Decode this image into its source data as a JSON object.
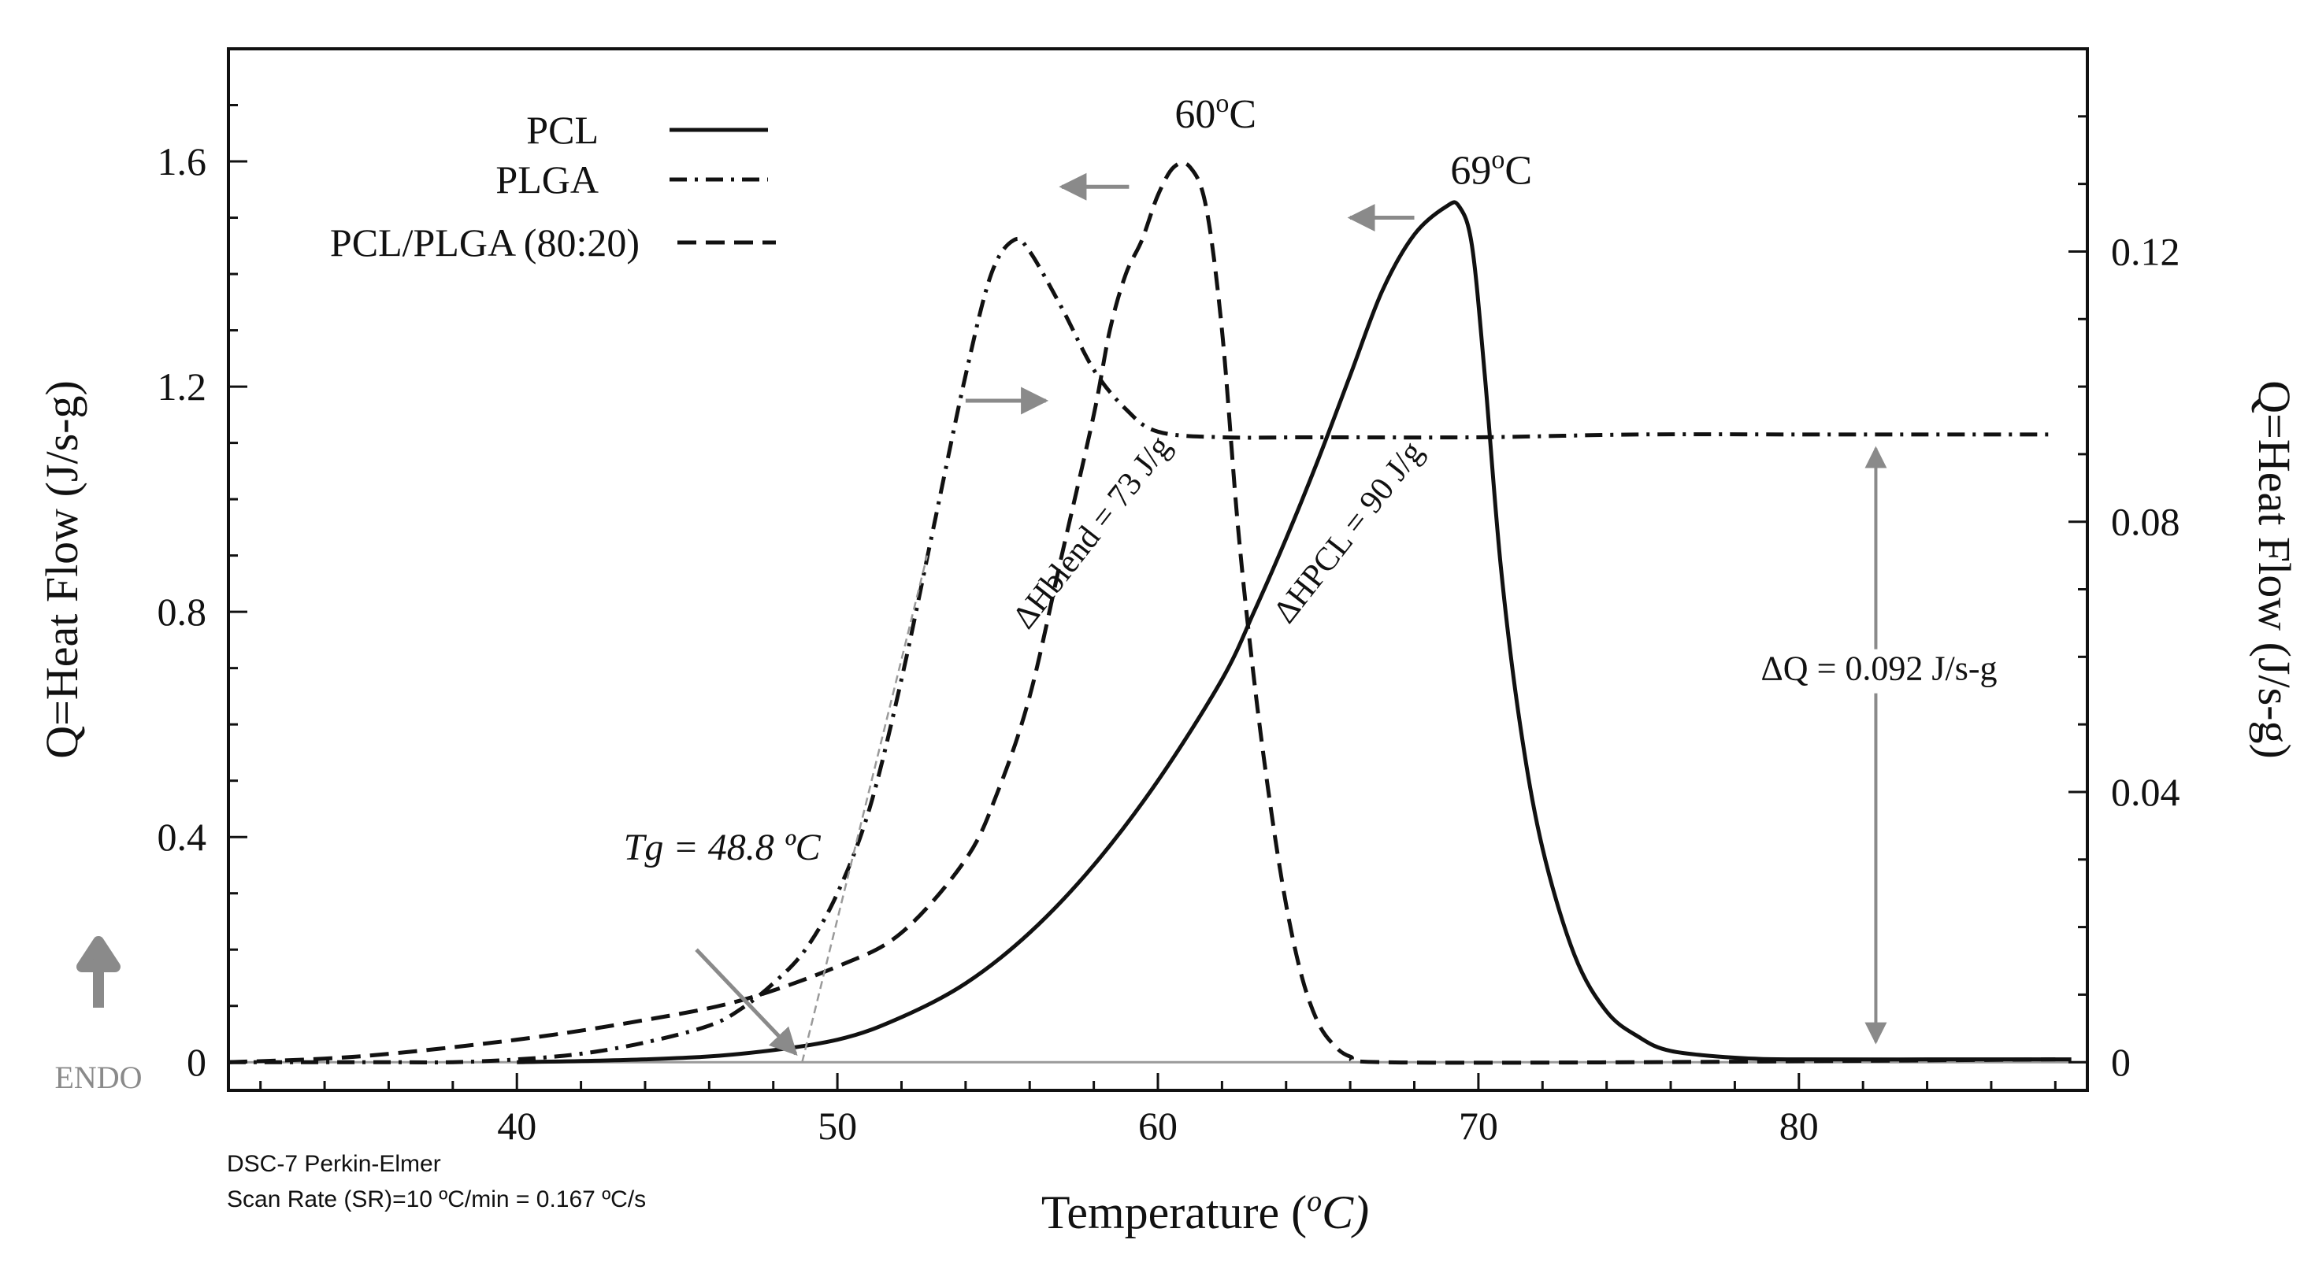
{
  "chart_data": {
    "type": "line",
    "xlabel_main": "Temperature (",
    "xlabel_unit": "o",
    "xlabel_unit2": "C)",
    "ylabel_left": "Q=Heat Flow (J/s-g)",
    "ylabel_right": "Q=Heat Flow (J/s-g)",
    "xlim": [
      31,
      89
    ],
    "ylim_left": [
      -0.05,
      1.8
    ],
    "ylim_right": [
      -0.00417,
      0.15
    ],
    "x_ticks": [
      {
        "value": 40,
        "label": "40"
      },
      {
        "value": 50,
        "label": "50"
      },
      {
        "value": 60,
        "label": "60"
      },
      {
        "value": 70,
        "label": "70"
      },
      {
        "value": 80,
        "label": "80"
      }
    ],
    "y_left_ticks": [
      {
        "value": 0,
        "label": "0"
      },
      {
        "value": 0.4,
        "label": "0.4"
      },
      {
        "value": 0.8,
        "label": "0.8"
      },
      {
        "value": 1.2,
        "label": "1.2"
      },
      {
        "value": 1.6,
        "label": "1.6"
      }
    ],
    "y_right_ticks": [
      {
        "value": 0,
        "label": "0"
      },
      {
        "value": 0.04,
        "label": "0.04"
      },
      {
        "value": 0.08,
        "label": "0.08"
      },
      {
        "value": 0.12,
        "label": "0.12"
      }
    ],
    "series": [
      {
        "name": "PCL",
        "style": "solid",
        "points": [
          [
            40,
            0.0
          ],
          [
            44,
            0.005
          ],
          [
            47,
            0.015
          ],
          [
            50,
            0.04
          ],
          [
            52,
            0.08
          ],
          [
            54,
            0.14
          ],
          [
            56,
            0.23
          ],
          [
            58,
            0.35
          ],
          [
            60,
            0.5
          ],
          [
            62,
            0.68
          ],
          [
            63,
            0.8
          ],
          [
            64,
            0.93
          ],
          [
            65,
            1.07
          ],
          [
            66,
            1.22
          ],
          [
            67,
            1.37
          ],
          [
            68,
            1.47
          ],
          [
            69,
            1.52
          ],
          [
            69.4,
            1.52
          ],
          [
            69.8,
            1.45
          ],
          [
            70.2,
            1.22
          ],
          [
            70.7,
            0.88
          ],
          [
            71.3,
            0.6
          ],
          [
            72,
            0.38
          ],
          [
            73,
            0.19
          ],
          [
            74,
            0.09
          ],
          [
            75,
            0.045
          ],
          [
            76,
            0.02
          ],
          [
            78,
            0.008
          ],
          [
            80,
            0.005
          ],
          [
            84,
            0.005
          ],
          [
            88.5,
            0.005
          ]
        ]
      },
      {
        "name": "PLGA",
        "style": "dashdot",
        "points": [
          [
            31,
            0.0
          ],
          [
            34,
            0.0
          ],
          [
            36,
            0.0
          ],
          [
            38,
            0.0
          ],
          [
            40,
            0.005
          ],
          [
            42,
            0.015
          ],
          [
            44,
            0.035
          ],
          [
            46,
            0.065
          ],
          [
            47,
            0.095
          ],
          [
            48,
            0.14
          ],
          [
            49,
            0.2
          ],
          [
            50,
            0.3
          ],
          [
            51,
            0.45
          ],
          [
            52,
            0.68
          ],
          [
            53,
            0.95
          ],
          [
            54,
            1.22
          ],
          [
            54.8,
            1.4
          ],
          [
            55.5,
            1.46
          ],
          [
            56,
            1.44
          ],
          [
            57,
            1.34
          ],
          [
            58,
            1.23
          ],
          [
            59,
            1.16
          ],
          [
            60,
            1.12
          ],
          [
            62,
            1.11
          ],
          [
            65,
            1.11
          ],
          [
            70,
            1.11
          ],
          [
            75,
            1.115
          ],
          [
            80,
            1.115
          ],
          [
            85,
            1.115
          ],
          [
            88,
            1.115
          ]
        ]
      },
      {
        "name": "PCL/PLGA (80:20)",
        "style": "dashed",
        "points": [
          [
            31,
            0.0
          ],
          [
            35,
            0.01
          ],
          [
            40,
            0.04
          ],
          [
            44,
            0.075
          ],
          [
            47,
            0.11
          ],
          [
            50,
            0.17
          ],
          [
            52,
            0.23
          ],
          [
            54,
            0.36
          ],
          [
            55,
            0.48
          ],
          [
            56,
            0.65
          ],
          [
            57,
            0.9
          ],
          [
            58,
            1.15
          ],
          [
            58.5,
            1.3
          ],
          [
            59,
            1.4
          ],
          [
            59.5,
            1.46
          ],
          [
            60,
            1.54
          ],
          [
            60.5,
            1.59
          ],
          [
            61,
            1.59
          ],
          [
            61.5,
            1.52
          ],
          [
            62,
            1.3
          ],
          [
            62.5,
            0.95
          ],
          [
            63,
            0.68
          ],
          [
            63.5,
            0.46
          ],
          [
            64,
            0.28
          ],
          [
            64.5,
            0.15
          ],
          [
            65,
            0.07
          ],
          [
            65.5,
            0.03
          ],
          [
            66,
            0.01
          ],
          [
            67,
            0.0
          ],
          [
            75,
            0.0
          ],
          [
            88,
            0.005
          ]
        ]
      }
    ],
    "tg_tangent": [
      [
        48.9,
        0.0
      ],
      [
        52.8,
        0.9
      ]
    ],
    "tg_point": [
      48.9,
      0.0
    ],
    "peak_labels": [
      {
        "text": "60",
        "unit": "o",
        "unit2": "C",
        "x": 61.8,
        "y": 1.66
      },
      {
        "text": "69",
        "unit": "o",
        "unit2": "C",
        "x": 70.4,
        "y": 1.56
      }
    ],
    "delta_q": {
      "x": 82.4,
      "y_top": 1.11,
      "y_bottom": 0.03,
      "label": "ΔQ = 0.092 J/s-g",
      "label_x": 82.5,
      "label_y": 0.7
    },
    "dh_blend": {
      "label": "ΔHblend = 73 J/g",
      "x": 58.2,
      "y": 0.93,
      "angle": -52
    },
    "dh_pcl": {
      "label": "ΔHPCL = 90 J/g",
      "x": 66.2,
      "y": 0.93,
      "angle": -52
    },
    "tg_label": {
      "label": "Tg = 48.8 ºC",
      "x": 46.4,
      "y": 0.36
    },
    "legend": [
      {
        "name": "PCL",
        "style": "solid"
      },
      {
        "name": "PLGA",
        "style": "dashdot"
      },
      {
        "name": "PCL/PLGA (80:20)",
        "style": "dashed"
      }
    ],
    "endo_label": "ENDO",
    "footnote_line1": "DSC-7  Perkin-Elmer",
    "footnote_line2": "Scan Rate (SR)=10 ºC/min = 0.167 ºC/s"
  }
}
